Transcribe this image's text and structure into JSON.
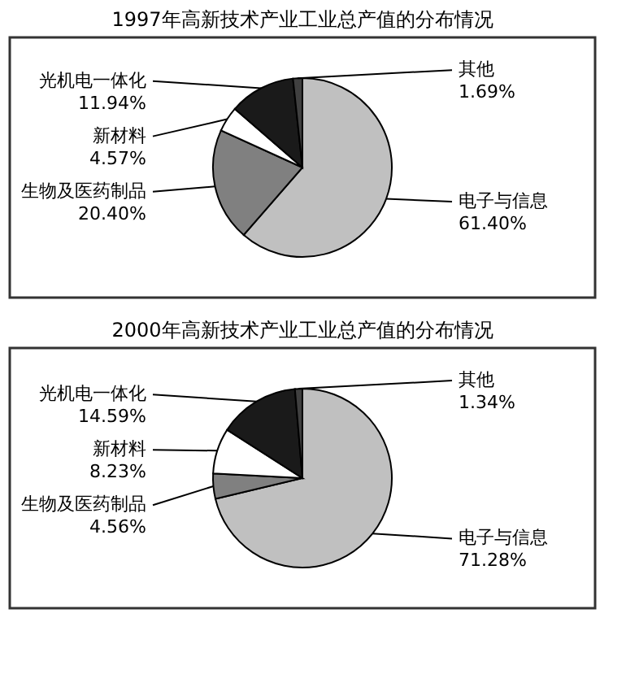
{
  "chart_data": [
    {
      "type": "pie",
      "title": "1997年高新技术产业工业总产值的分布情况",
      "categories": [
        "电子与信息",
        "生物及医药制品",
        "新材料",
        "光机电一体化",
        "其他"
      ],
      "values": [
        61.4,
        20.4,
        4.57,
        11.94,
        1.69
      ],
      "value_labels": [
        "61.40%",
        "20.40%",
        "4.57%",
        "11.94%",
        "1.69%"
      ],
      "colors": [
        "#c0c0c0",
        "#808080",
        "#ffffff",
        "#1a1a1a",
        "#404040"
      ],
      "legend": false
    },
    {
      "type": "pie",
      "title": "2000年高新技术产业工业总产值的分布情况",
      "categories": [
        "电子与信息",
        "生物及医药制品",
        "新材料",
        "光机电一体化",
        "其他"
      ],
      "values": [
        71.28,
        4.56,
        8.23,
        14.59,
        1.34
      ],
      "value_labels": [
        "71.28%",
        "4.56%",
        "8.23%",
        "14.59%",
        "1.34%"
      ],
      "colors": [
        "#c0c0c0",
        "#808080",
        "#ffffff",
        "#1a1a1a",
        "#404040"
      ],
      "legend": false
    }
  ]
}
